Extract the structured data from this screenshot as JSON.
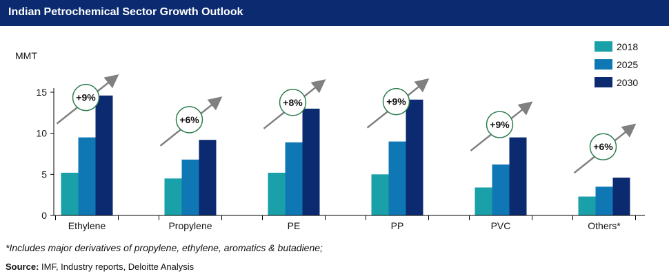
{
  "title": "Indian Petrochemical Sector Growth Outlook",
  "footnote": "*Includes major derivatives of propylene, ethylene, aromatics & butadiene;",
  "source": {
    "label": "Source:",
    "text": " IMF, Industry reports, Deloitte Analysis"
  },
  "colors": {
    "2018": "#1aa0a8",
    "2025": "#0f78b4",
    "2030": "#0b2a6f",
    "arrow": "#808080",
    "badge_border": "#2e7d4f",
    "title_bg": "#0b2a6f"
  },
  "chart_data": {
    "type": "bar",
    "ylabel": "MMT",
    "ylim": [
      0,
      15
    ],
    "yticks": [
      0,
      5,
      10,
      15
    ],
    "legend_position": "top-right",
    "categories": [
      "Ethylene",
      "Propylene",
      "PE",
      "PP",
      "PVC",
      "Others*"
    ],
    "series": [
      {
        "name": "2018",
        "values": [
          5.2,
          4.5,
          5.2,
          5.0,
          3.4,
          2.3
        ]
      },
      {
        "name": "2025",
        "values": [
          9.5,
          6.8,
          8.9,
          9.0,
          6.2,
          3.5
        ]
      },
      {
        "name": "2030",
        "values": [
          14.6,
          9.2,
          13.0,
          14.1,
          9.5,
          4.6
        ]
      }
    ],
    "growth_labels": [
      "+9%",
      "+6%",
      "+8%",
      "+9%",
      "+9%",
      "+6%"
    ]
  }
}
